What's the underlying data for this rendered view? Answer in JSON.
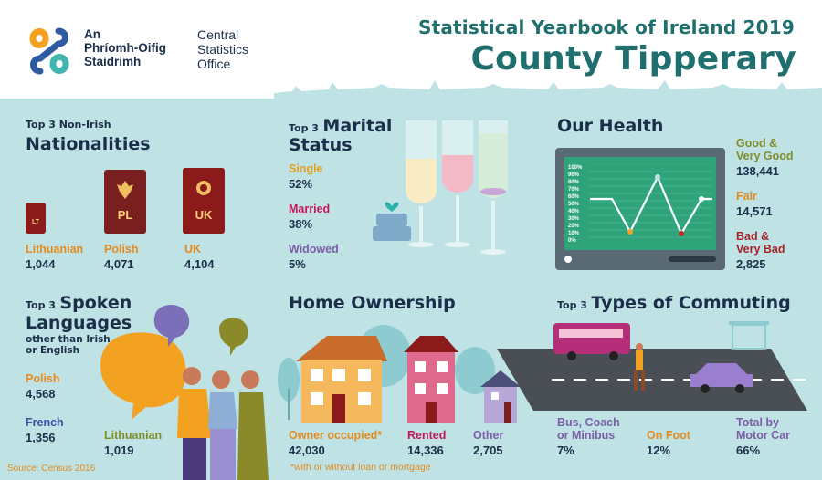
{
  "header": {
    "org_irish": [
      "An",
      "Phríomh-Oifig",
      "Staidrimh"
    ],
    "org_english": [
      "Central",
      "Statistics",
      "Office"
    ],
    "title_line1": "Statistical Yearbook of Ireland 2019",
    "title_line2": "County Tipperary"
  },
  "nationalities": {
    "title_small": "Top 3 Non-Irish",
    "title_big": "Nationalities",
    "items": [
      {
        "label": "Lithuanian",
        "value": "1,044",
        "code": "LT"
      },
      {
        "label": "Polish",
        "value": "4,071",
        "code": "PL"
      },
      {
        "label": "UK",
        "value": "4,104",
        "code": "UK"
      }
    ]
  },
  "marital": {
    "title_small": "Top 3",
    "title_big": [
      "Marital",
      "Status"
    ],
    "items": [
      {
        "label": "Single",
        "value": "52%"
      },
      {
        "label": "Married",
        "value": "38%"
      },
      {
        "label": "Widowed",
        "value": "5%"
      }
    ]
  },
  "health": {
    "title": "Our Health",
    "monitor_ticks": [
      "100%",
      "90%",
      "80%",
      "70%",
      "60%",
      "50%",
      "40%",
      "30%",
      "20%",
      "10%",
      "0%"
    ],
    "items": [
      {
        "label": [
          "Good &",
          "Very Good"
        ],
        "value": "138,441"
      },
      {
        "label": [
          "Fair"
        ],
        "value": "14,571"
      },
      {
        "label": [
          "Bad &",
          "Very Bad"
        ],
        "value": "2,825"
      }
    ]
  },
  "languages": {
    "title_small": "Top 3",
    "title_big": [
      "Spoken",
      "Languages"
    ],
    "subtitle": [
      "other than Irish",
      "or English"
    ],
    "items": [
      {
        "label": "Polish",
        "value": "4,568"
      },
      {
        "label": "French",
        "value": "1,356"
      },
      {
        "label": "Lithuanian",
        "value": "1,019"
      }
    ]
  },
  "home": {
    "title": "Home Ownership",
    "items": [
      {
        "label": "Owner occupied*",
        "value": "42,030"
      },
      {
        "label": "Rented",
        "value": "14,336"
      },
      {
        "label": "Other",
        "value": "2,705"
      }
    ],
    "footnote": "*with or without loan or mortgage"
  },
  "commuting": {
    "title_small": "Top 3",
    "title_big": "Types of Commuting",
    "items": [
      {
        "label": [
          "Bus, Coach",
          "or Minibus"
        ],
        "value": "7%"
      },
      {
        "label": [
          "On Foot"
        ],
        "value": "12%"
      },
      {
        "label": [
          "Total by",
          "Motor Car"
        ],
        "value": "66%"
      }
    ]
  },
  "source": "Source: Census 2016",
  "colors": {
    "panel": "#bfe3e4",
    "teal_title": "#1e6f6d",
    "navy": "#1b2f4a",
    "orange": "#e58a1f",
    "magenta": "#c2185b",
    "purple": "#7b5ea7",
    "olive": "#7f8e2b",
    "crimson": "#a8222c"
  }
}
